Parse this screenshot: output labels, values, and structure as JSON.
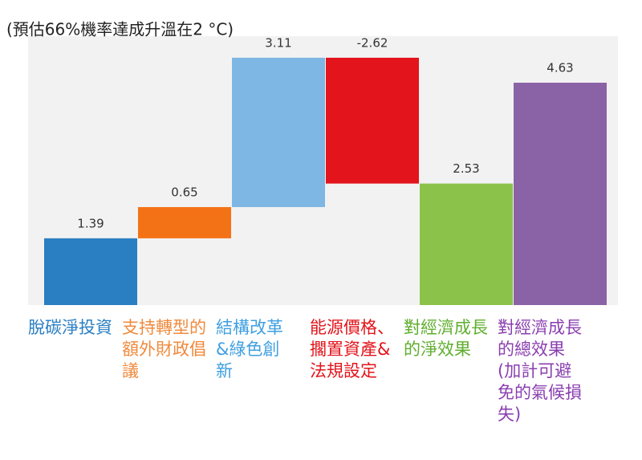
{
  "chart_data": {
    "type": "waterfall",
    "title": "(預估66%機率達成升溫在2 °C)",
    "categories": [
      "脫碳淨投資",
      "支持轉型的額外財政倡議",
      "結構改革&綠色創新",
      "能源價格、擱置資產&法規設定",
      "對經濟成長的淨效果",
      "對經濟成長的總效果(加計可避免的氣候損失)"
    ],
    "values": [
      1.39,
      0.65,
      3.11,
      -2.62,
      2.53,
      4.63
    ],
    "is_total": [
      false,
      false,
      false,
      false,
      true,
      true
    ],
    "colors": [
      "#2a7ec2",
      "#f47216",
      "#7eb6e4",
      "#e3141b",
      "#8bc34a",
      "#8a62a6"
    ],
    "label_colors": [
      "#2a7ec2",
      "#f08a3c",
      "#3f9fe0",
      "#e3141b",
      "#5fae2e",
      "#8a3fb0"
    ],
    "ylim": [
      0,
      5.6
    ]
  }
}
